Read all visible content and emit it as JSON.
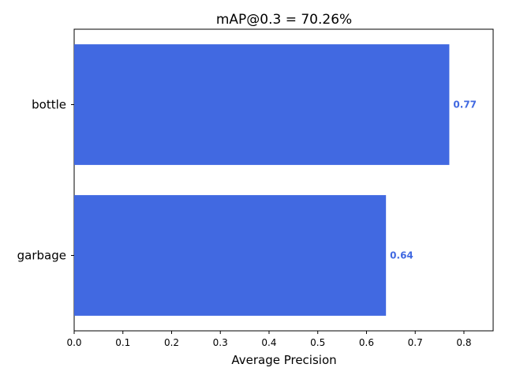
{
  "chart_data": {
    "type": "bar",
    "orientation": "horizontal",
    "title": "mAP@0.3 = 70.26%",
    "xlabel": "Average Precision",
    "ylabel": "",
    "categories": [
      "bottle",
      "garbage"
    ],
    "values": [
      0.77,
      0.64
    ],
    "data_labels": [
      "0.77",
      "0.64"
    ],
    "xlim": [
      0,
      0.86
    ],
    "xticks": [
      "0.0",
      "0.1",
      "0.2",
      "0.3",
      "0.4",
      "0.5",
      "0.6",
      "0.7",
      "0.8"
    ],
    "grid": false,
    "legend": "none",
    "colors": {
      "bar": "#4169e1",
      "label": "#4169e1",
      "axis": "#000000"
    }
  }
}
